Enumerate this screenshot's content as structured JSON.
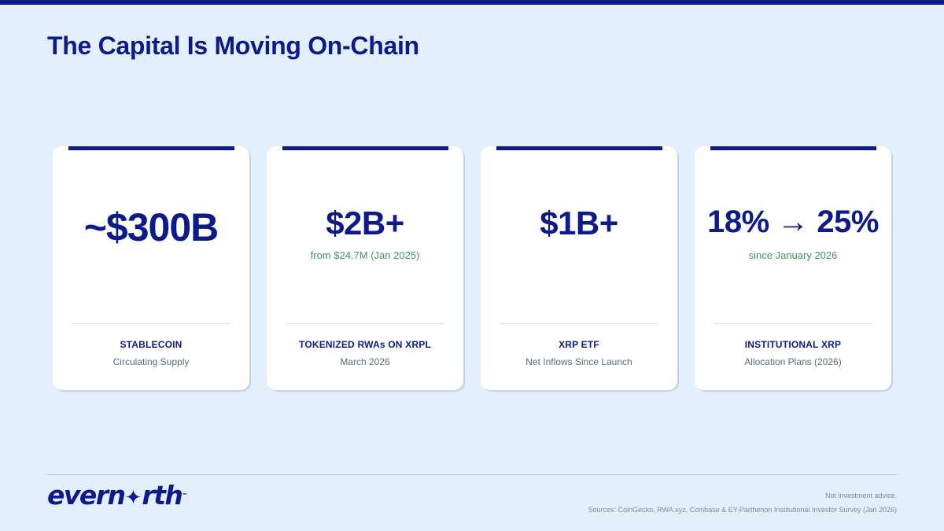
{
  "slide": {
    "title": "The Capital Is Moving On-Chain"
  },
  "cards": [
    {
      "metric": "~$300B",
      "subtext": "",
      "label": "STABLECOIN",
      "description": "Circulating Supply"
    },
    {
      "metric": "$2B+",
      "subtext": "from $24.7M (Jan 2025)",
      "label": "TOKENIZED RWAs ON XRPL",
      "description": "March 2026"
    },
    {
      "metric": "$1B+",
      "subtext": "",
      "label": "XRP ETF",
      "description": "Net Inflows Since Launch"
    },
    {
      "metric": "18% → 25%",
      "subtext": "since January 2026",
      "label": "INSTITUTIONAL XRP",
      "description": "Allocation Plans (2026)"
    }
  ],
  "footer": {
    "logo_text": "evern",
    "logo_star": "✦",
    "logo_text_end": "rth",
    "logo_mark": "™",
    "disclaimer": "Not investment advice.",
    "sources": "Sources: CoinGecko, RWA.xyz, Coinbase & EY-Parthenon Institutional Investor Survey (Jan 2026)"
  },
  "colors": {
    "background": "#e3effd",
    "brand_navy": "#0d1a8c",
    "accent_green": "#3f9a5c",
    "card": "#ffffff"
  }
}
